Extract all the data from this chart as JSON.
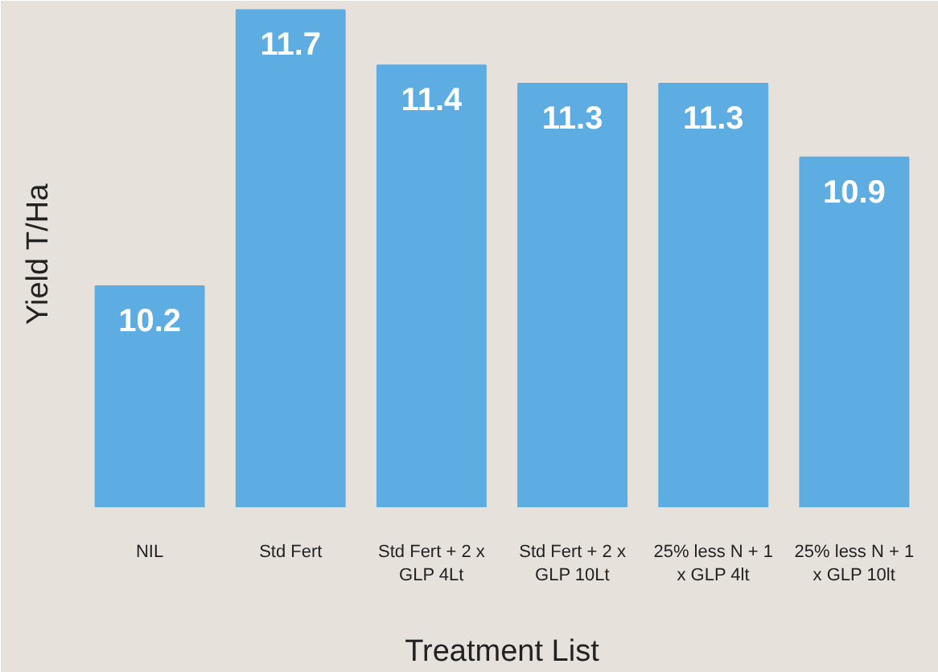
{
  "chart_data": {
    "type": "bar",
    "xlabel": "Treatment List",
    "ylabel": "Yield T/Ha",
    "categories": [
      "NIL",
      "Std Fert",
      "Std Fert + 2 x GLP 4Lt",
      "Std Fert + 2 x GLP 10Lt",
      "25% less N + 1 x GLP 4lt",
      "25% less N + 1 x GLP 10lt"
    ],
    "values": [
      10.2,
      11.7,
      11.4,
      11.3,
      11.3,
      10.9
    ],
    "color": "#5dade2",
    "ylim": [
      9,
      11.75
    ],
    "data_labels": true,
    "tick_labels": "x"
  }
}
